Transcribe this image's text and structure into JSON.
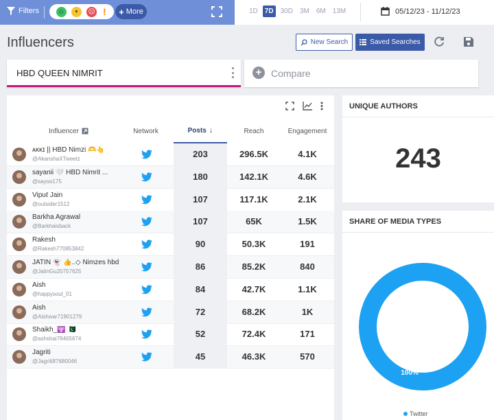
{
  "toolbar": {
    "filters_label": "Filters",
    "more_label": "More",
    "ranges": [
      "1D",
      "7D",
      "30D",
      "3M",
      "6M",
      "13M"
    ],
    "active_range": "7D",
    "date_range": "05/12/23 - 11/12/23"
  },
  "header": {
    "title": "Influencers",
    "new_search_label": "New Search",
    "saved_searches_label": "Saved Searches"
  },
  "query": {
    "name": "HBD QUEEN NIMRIT",
    "compare_label": "Compare"
  },
  "colors": {
    "accent": "#3b5aa8",
    "topbar": "#6f8fd8",
    "query_underline": "#c41b7a",
    "twitter": "#1da1f2"
  },
  "table": {
    "columns": {
      "influencer": "Influencer",
      "network": "Network",
      "posts": "Posts",
      "reach": "Reach",
      "engagement": "Engagement"
    },
    "rows": [
      {
        "name": "ᴀᴋᴋɪ || HBD Nimzi 🫶👆",
        "handle": "@AkanshaXTweetz",
        "network": "twitter-icon",
        "posts": "203",
        "reach": "296.5K",
        "engagement": "4.1K"
      },
      {
        "name": "sayanii 🤍 HBD Nimrit ...",
        "handle": "@sayoo175",
        "network": "twitter-icon",
        "posts": "180",
        "reach": "142.1K",
        "engagement": "4.6K"
      },
      {
        "name": "Vipuℓ Jain",
        "handle": "@outsider1512",
        "network": "twitter-icon",
        "posts": "107",
        "reach": "117.1K",
        "engagement": "2.1K"
      },
      {
        "name": "Barkha Agrawal",
        "handle": "@Barkhaisback",
        "network": "twitter-icon",
        "posts": "107",
        "reach": "65K",
        "engagement": "1.5K"
      },
      {
        "name": "Rakesh",
        "handle": "@Rakesh770853842",
        "network": "twitter-icon",
        "posts": "90",
        "reach": "50.3K",
        "engagement": "191"
      },
      {
        "name": "JATIN 👻 👍..◇ Nimzes hbd",
        "handle": "@JatinGu20757625",
        "network": "twitter-icon",
        "posts": "86",
        "reach": "85.2K",
        "engagement": "840"
      },
      {
        "name": "Aish",
        "handle": "@happysoul_01",
        "network": "twitter-icon",
        "posts": "84",
        "reach": "42.7K",
        "engagement": "1.1K"
      },
      {
        "name": "Aish",
        "handle": "@Aishwar71901279",
        "network": "twitter-icon",
        "posts": "72",
        "reach": "68.2K",
        "engagement": "1K"
      },
      {
        "name": "Shaikh_🕎 🇵🇰",
        "handle": "@ashshai78465674",
        "network": "twitter-icon",
        "posts": "52",
        "reach": "72.4K",
        "engagement": "171"
      },
      {
        "name": "Jagriti",
        "handle": "@Jagriti87680046",
        "network": "twitter-icon",
        "posts": "45",
        "reach": "46.3K",
        "engagement": "570"
      }
    ]
  },
  "authors": {
    "title": "UNIQUE AUTHORS",
    "count": "243"
  },
  "media": {
    "title": "SHARE OF MEDIA TYPES",
    "slices": [
      {
        "name": "Twitter",
        "percent": 100,
        "label": "100%"
      }
    ],
    "legend": "Twitter"
  }
}
